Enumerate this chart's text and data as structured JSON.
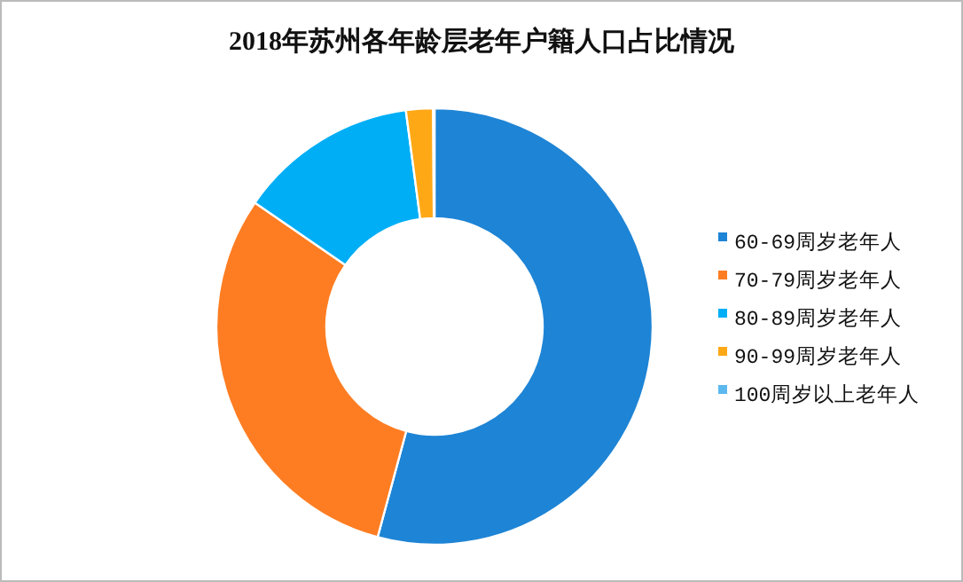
{
  "chart_data": {
    "type": "donut",
    "title": "2018年苏州各年龄层老年户籍人口占比情况",
    "categories": [
      "60-69周岁老年人",
      "70-79周岁老年人",
      "80-89周岁老年人",
      "90-99周岁老年人",
      "100周岁以上老年人"
    ],
    "values": [
      54.2,
      30.4,
      13.3,
      2.0,
      0.1
    ],
    "colors": [
      "#1e84d5",
      "#fe7d22",
      "#00aef6",
      "#ffa816",
      "#5cb9ef"
    ],
    "legend": "right"
  }
}
